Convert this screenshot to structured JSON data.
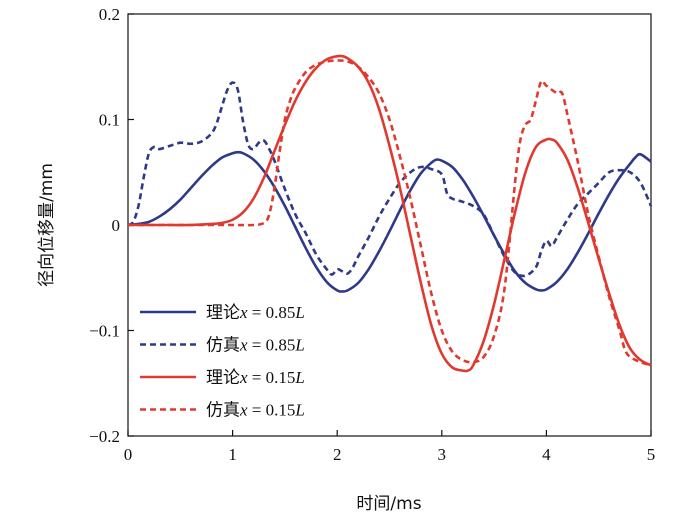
{
  "chart_data": {
    "type": "line",
    "xlabel": "时间/ms",
    "ylabel": "径向位移量/mm",
    "xlim": [
      0,
      5
    ],
    "ylim": [
      -0.2,
      0.2
    ],
    "xticks": [
      "0",
      "1",
      "2",
      "3",
      "4",
      "5"
    ],
    "yticks": [
      "−0.2",
      "−0.1",
      "0",
      "0.1",
      "0.2"
    ],
    "grid": false,
    "legend_position": "bottom-left",
    "series": [
      {
        "name": "理论x=0.85L",
        "legend_prefix": "理论",
        "legend_var": "x",
        "legend_eq": " = 0.85",
        "legend_unit": "L",
        "color": "#2e3a87",
        "dash": "solid",
        "x": [
          0,
          0.1,
          0.2,
          0.3,
          0.4,
          0.5,
          0.6,
          0.7,
          0.8,
          0.9,
          1.0,
          1.05,
          1.1,
          1.2,
          1.3,
          1.4,
          1.5,
          1.6,
          1.7,
          1.8,
          1.9,
          2.0,
          2.05,
          2.1,
          2.2,
          2.3,
          2.4,
          2.5,
          2.6,
          2.7,
          2.8,
          2.9,
          2.95,
          3.0,
          3.1,
          3.2,
          3.3,
          3.4,
          3.5,
          3.6,
          3.7,
          3.8,
          3.9,
          3.95,
          4.0,
          4.1,
          4.2,
          4.3,
          4.4,
          4.5,
          4.6,
          4.7,
          4.8,
          4.85,
          4.9,
          5.0
        ],
        "y": [
          0,
          0.001,
          0.003,
          0.008,
          0.015,
          0.024,
          0.035,
          0.046,
          0.056,
          0.064,
          0.068,
          0.069,
          0.068,
          0.062,
          0.051,
          0.036,
          0.018,
          -0.002,
          -0.022,
          -0.04,
          -0.054,
          -0.062,
          -0.063,
          -0.062,
          -0.055,
          -0.042,
          -0.025,
          -0.006,
          0.014,
          0.033,
          0.049,
          0.059,
          0.062,
          0.061,
          0.055,
          0.043,
          0.027,
          0.009,
          -0.01,
          -0.028,
          -0.044,
          -0.055,
          -0.061,
          -0.062,
          -0.061,
          -0.054,
          -0.042,
          -0.026,
          -0.008,
          0.011,
          0.029,
          0.045,
          0.058,
          0.064,
          0.067,
          0.06
        ]
      },
      {
        "name": "仿真x=0.85L",
        "legend_prefix": "仿真",
        "legend_var": "x",
        "legend_eq": " = 0.85",
        "legend_unit": "L",
        "color": "#2e3a87",
        "dash": "dashed",
        "x": [
          0,
          0.05,
          0.1,
          0.15,
          0.2,
          0.25,
          0.3,
          0.4,
          0.5,
          0.6,
          0.7,
          0.8,
          0.85,
          0.9,
          0.95,
          1.0,
          1.05,
          1.1,
          1.15,
          1.2,
          1.25,
          1.3,
          1.35,
          1.4,
          1.5,
          1.6,
          1.7,
          1.8,
          1.9,
          1.95,
          2.0,
          2.05,
          2.1,
          2.15,
          2.2,
          2.3,
          2.4,
          2.5,
          2.6,
          2.7,
          2.8,
          2.9,
          3.0,
          3.05,
          3.1,
          3.2,
          3.3,
          3.4,
          3.5,
          3.6,
          3.7,
          3.8,
          3.9,
          3.95,
          4.0,
          4.05,
          4.1,
          4.2,
          4.3,
          4.4,
          4.5,
          4.6,
          4.7,
          4.8,
          4.9,
          5.0
        ],
        "y": [
          0,
          0.003,
          0.018,
          0.045,
          0.068,
          0.074,
          0.072,
          0.075,
          0.078,
          0.077,
          0.079,
          0.087,
          0.097,
          0.113,
          0.128,
          0.135,
          0.128,
          0.098,
          0.076,
          0.072,
          0.078,
          0.08,
          0.072,
          0.061,
          0.034,
          0.01,
          -0.008,
          -0.028,
          -0.042,
          -0.047,
          -0.042,
          -0.044,
          -0.046,
          -0.04,
          -0.03,
          -0.012,
          0.008,
          0.025,
          0.04,
          0.05,
          0.055,
          0.053,
          0.048,
          0.03,
          0.025,
          0.022,
          0.018,
          0.01,
          -0.01,
          -0.03,
          -0.045,
          -0.048,
          -0.04,
          -0.025,
          -0.015,
          -0.02,
          -0.012,
          0.005,
          0.02,
          0.03,
          0.04,
          0.05,
          0.052,
          0.05,
          0.04,
          0.018
        ]
      },
      {
        "name": "理论x=0.15L",
        "legend_prefix": "理论",
        "legend_var": "x",
        "legend_eq": " = 0.15",
        "legend_unit": "L",
        "color": "#e03a30",
        "dash": "solid",
        "x": [
          0,
          0.2,
          0.4,
          0.6,
          0.8,
          0.9,
          1.0,
          1.1,
          1.2,
          1.3,
          1.4,
          1.5,
          1.6,
          1.7,
          1.8,
          1.9,
          2.0,
          2.05,
          2.1,
          2.2,
          2.3,
          2.4,
          2.5,
          2.6,
          2.7,
          2.8,
          2.9,
          3.0,
          3.1,
          3.2,
          3.25,
          3.3,
          3.4,
          3.5,
          3.6,
          3.7,
          3.8,
          3.9,
          4.0,
          4.05,
          4.1,
          4.2,
          4.3,
          4.4,
          4.5,
          4.6,
          4.7,
          4.8,
          4.9,
          5.0
        ],
        "y": [
          0,
          0,
          0,
          0,
          0.001,
          0.002,
          0.005,
          0.012,
          0.025,
          0.045,
          0.07,
          0.095,
          0.118,
          0.136,
          0.149,
          0.157,
          0.16,
          0.16,
          0.158,
          0.15,
          0.135,
          0.11,
          0.075,
          0.035,
          -0.01,
          -0.055,
          -0.095,
          -0.122,
          -0.135,
          -0.138,
          -0.138,
          -0.133,
          -0.11,
          -0.075,
          -0.032,
          0.012,
          0.05,
          0.074,
          0.081,
          0.081,
          0.078,
          0.062,
          0.035,
          0.002,
          -0.032,
          -0.065,
          -0.095,
          -0.117,
          -0.128,
          -0.133
        ]
      },
      {
        "name": "仿真x=0.15L",
        "legend_prefix": "仿真",
        "legend_var": "x",
        "legend_eq": " = 0.15",
        "legend_unit": "L",
        "color": "#e03a30",
        "dash": "dashed",
        "x": [
          0,
          0.5,
          1.0,
          1.2,
          1.3,
          1.35,
          1.4,
          1.45,
          1.5,
          1.55,
          1.6,
          1.7,
          1.8,
          1.9,
          2.0,
          2.1,
          2.2,
          2.3,
          2.4,
          2.5,
          2.6,
          2.7,
          2.8,
          2.9,
          3.0,
          3.1,
          3.2,
          3.3,
          3.4,
          3.5,
          3.6,
          3.7,
          3.75,
          3.8,
          3.85,
          3.9,
          3.95,
          4.0,
          4.1,
          4.15,
          4.2,
          4.3,
          4.4,
          4.5,
          4.6,
          4.7,
          4.75,
          4.8,
          4.9,
          5.0
        ],
        "y": [
          0,
          0,
          0,
          0,
          0.002,
          0.01,
          0.035,
          0.07,
          0.1,
          0.118,
          0.13,
          0.145,
          0.152,
          0.155,
          0.156,
          0.155,
          0.15,
          0.14,
          0.125,
          0.1,
          0.065,
          0.025,
          -0.02,
          -0.065,
          -0.1,
          -0.12,
          -0.128,
          -0.13,
          -0.125,
          -0.105,
          -0.06,
          0.04,
          0.08,
          0.095,
          0.1,
          0.118,
          0.136,
          0.132,
          0.125,
          0.125,
          0.105,
          0.06,
          0.01,
          -0.03,
          -0.068,
          -0.1,
          -0.118,
          -0.125,
          -0.13,
          -0.133
        ]
      }
    ]
  }
}
